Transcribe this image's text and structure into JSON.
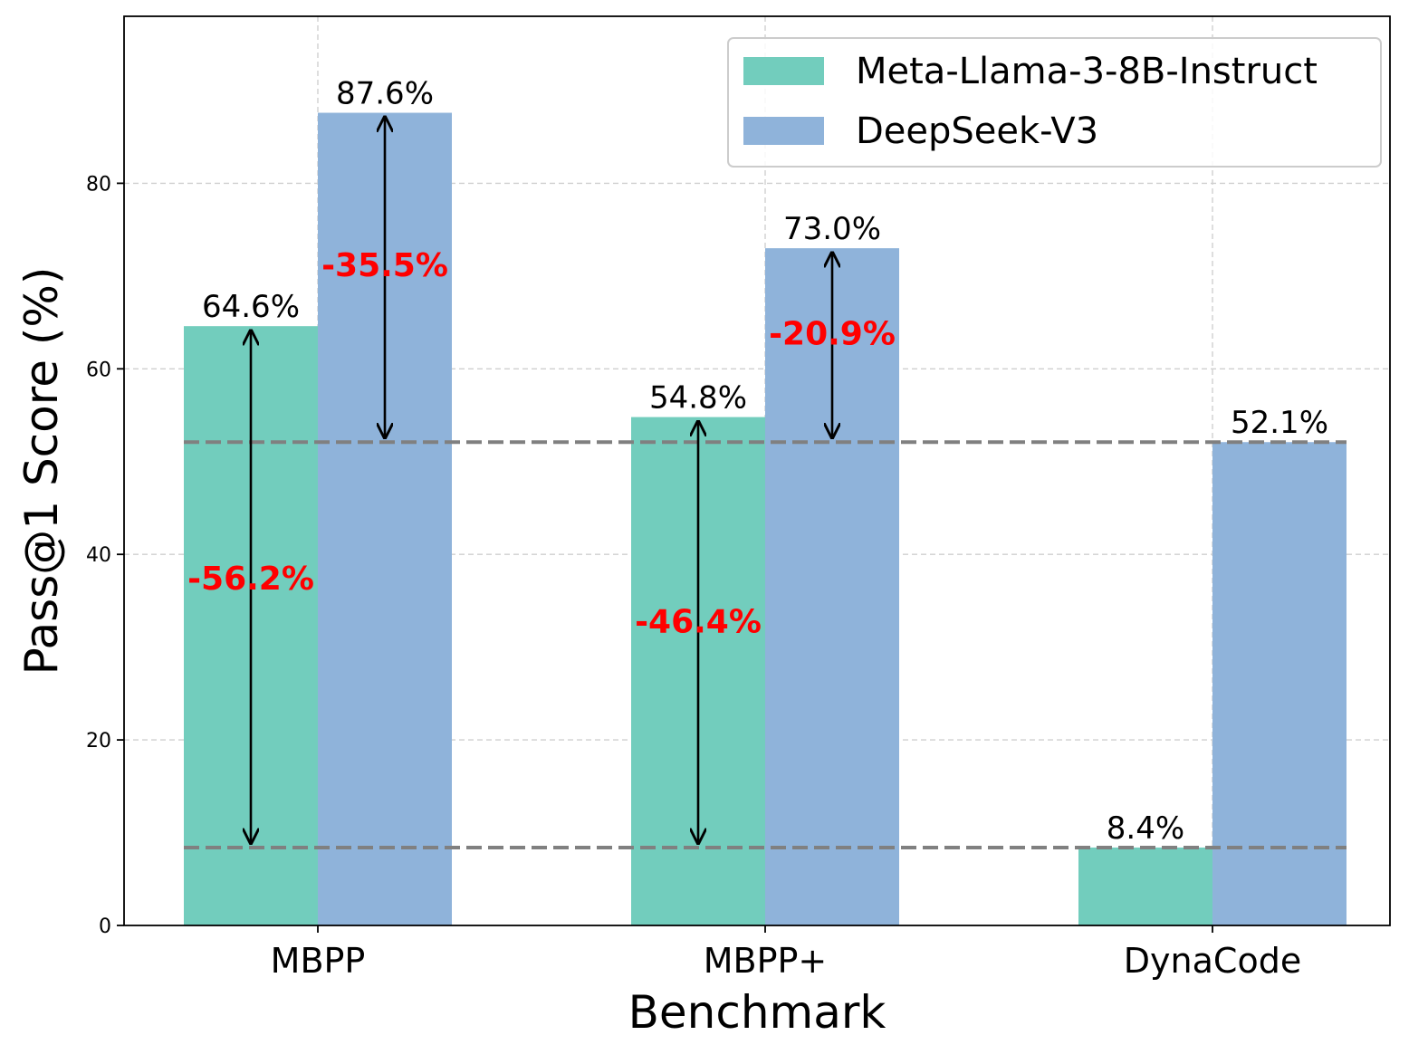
{
  "chart_data": {
    "type": "bar",
    "title": "",
    "xlabel": "Benchmark",
    "ylabel": "Pass@1 Score (%)",
    "categories": [
      "MBPP",
      "MBPP+",
      "DynaCode"
    ],
    "series": [
      {
        "name": "Meta-Llama-3-8B-Instruct",
        "values": [
          64.6,
          54.8,
          8.4
        ],
        "color": "#72cdbd",
        "labels": [
          "64.6%",
          "54.8%",
          "8.4%"
        ]
      },
      {
        "name": "DeepSeek-V3",
        "values": [
          87.6,
          73.0,
          52.1
        ],
        "color": "#8fb3da",
        "labels": [
          "87.6%",
          "73.0%",
          "52.1%"
        ]
      }
    ],
    "ylim": [
      0,
      98
    ],
    "yticks": [
      0,
      20,
      40,
      60,
      80
    ],
    "ytick_labels": [
      "0",
      "20",
      "40",
      "60",
      "80"
    ],
    "grid": true,
    "legend_position": "top-right",
    "reference_lines": [
      {
        "value": 8.4,
        "style": "dashed",
        "color": "#808080"
      },
      {
        "value": 52.1,
        "style": "dashed",
        "color": "#808080"
      }
    ],
    "annotations": [
      {
        "category": "MBPP",
        "series": 0,
        "from": 64.6,
        "to": 8.4,
        "label": "-56.2%",
        "label_y": 36.2
      },
      {
        "category": "MBPP",
        "series": 1,
        "from": 87.6,
        "to": 52.1,
        "label": "-35.5%",
        "label_y": 70
      },
      {
        "category": "MBPP+",
        "series": 0,
        "from": 54.8,
        "to": 8.4,
        "label": "-46.4%",
        "label_y": 31.6
      },
      {
        "category": "MBPP+",
        "series": 1,
        "from": 73.0,
        "to": 52.1,
        "label": "-20.9%",
        "label_y": 62.6
      }
    ],
    "annotation_color": "#ff0000"
  }
}
